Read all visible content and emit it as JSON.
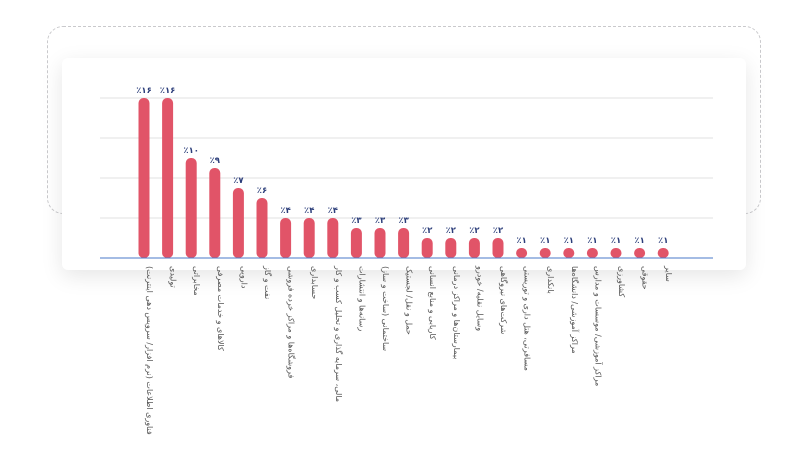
{
  "colors": {
    "bar": "#e15468",
    "grid": "#e2e2e2",
    "axis": "#4a78c8",
    "value_text": "#2c3e7a",
    "label_text": "#555555"
  },
  "chart_data": {
    "type": "bar",
    "grid": true,
    "ylim": [
      0,
      18
    ],
    "categories": [
      "فناوری اطلاعات (نرم افزار/ سرویس دهی اینترنت)",
      "تولیدی",
      "مخابراتی",
      "کالاهای و خدمات مصرفی",
      "دارویی",
      "نفت و گاز",
      "فروشگاه‌ها و مراکز خرده فروشی",
      "حسابداری",
      "مالی، سرمایه گذاری و تحلیل کسب و کار",
      "رسانه‌ها و انتشارات",
      "ساختمانی (ساخت و ساز)",
      "حمل و نقل/ لجستیک",
      "کاریابی و منابع انسانی",
      "بیمارستان‌ها و مراکز درمانی",
      "وسایل نقلیه/ خودرو",
      "شرکت‌های نیروگاهی",
      "مسافرتی، هتل داری و توریستی",
      "بانکداری",
      "مراکز آموزشی/ دانشگاه‌ها",
      "مراکز آموزشی/ موسسات و مدارس",
      "کشاورزی",
      "حقوقی",
      "سایر"
    ],
    "values": [
      16,
      16,
      10,
      9,
      7,
      6,
      4,
      4,
      4,
      3,
      3,
      3,
      2,
      2,
      2,
      2,
      1,
      1,
      1,
      1,
      1,
      1,
      1
    ],
    "value_labels": [
      "٪۱۶",
      "٪۱۶",
      "٪۱۰",
      "٪۹",
      "٪۷",
      "٪۶",
      "٪۴",
      "٪۴",
      "٪۴",
      "٪۳",
      "٪۳",
      "٪۳",
      "٪۲",
      "٪۲",
      "٪۲",
      "٪۲",
      "٪۱",
      "٪۱",
      "٪۱",
      "٪۱",
      "٪۱",
      "٪۱",
      "٪۱"
    ]
  }
}
